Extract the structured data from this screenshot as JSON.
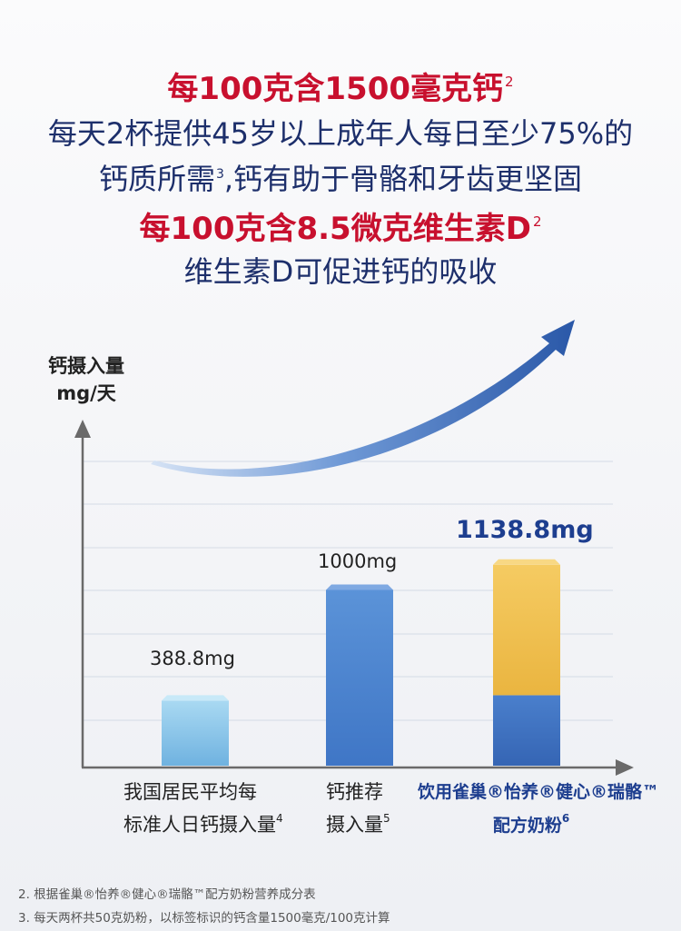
{
  "headline": {
    "line1": {
      "text": "每100克含1500毫克钙",
      "sup": "2"
    },
    "line2": {
      "text": "每天2杯提供45岁以上成年人每日至少75%的"
    },
    "line3": {
      "before": "钙质所需",
      "sup": "3",
      "after": ",钙有助于骨骼和牙齿更坚固"
    },
    "line4": {
      "text": "每100克含8.5微克维生素D",
      "sup": "2"
    },
    "line5": {
      "text": "维生素D可促进钙的吸收"
    }
  },
  "chart_data": {
    "type": "bar",
    "ylabel_line1": "钙摄入量",
    "ylabel_line2": "mg/天",
    "categories": [
      {
        "line1": "我国居民平均每",
        "line2": "标准人日钙摄入量",
        "sup": "4"
      },
      {
        "line1": "钙推荐",
        "line2": "摄入量",
        "sup": "5"
      },
      {
        "line1": "饮用雀巢®怡养®健心®瑞骼™",
        "line2": "配方奶粉",
        "sup": "6"
      }
    ],
    "values": [
      388.8,
      1000,
      1138.8
    ],
    "value_labels": [
      "388.8mg",
      "1000mg",
      "1138.8mg"
    ],
    "stack_third_bar": {
      "lower_part": 388.8,
      "upper_part": 750
    },
    "grid": true,
    "colors": {
      "bar1": "#8ec8ea",
      "bar2": "#4a83cf",
      "bar3_lower": "#3d6fc0",
      "bar3_upper": "#f1bd4a",
      "arrow": "#2f5fae",
      "highlight_label": "#1d3e8f"
    }
  },
  "footnotes": [
    "2. 根据雀巢®怡养®健心®瑞骼™配方奶粉营养成分表",
    "3. 每天两杯共50克奶粉，以标签标识的钙含量1500毫克/100克计算"
  ]
}
